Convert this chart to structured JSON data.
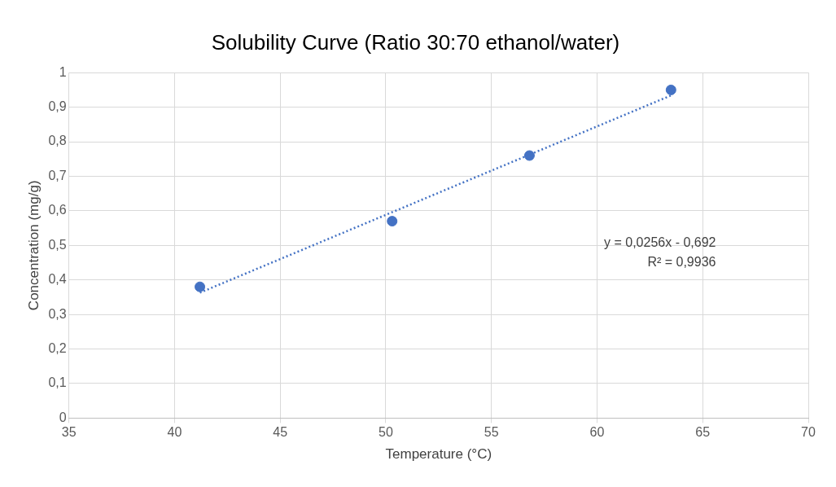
{
  "chart_data": {
    "type": "scatter",
    "title": "Solubility Curve (Ratio 30:70 ethanol/water)",
    "xlabel": "Temperature (°C)",
    "ylabel": "Concentration (mg/g)",
    "series": [
      {
        "type": "scatter",
        "color": "#4472c4",
        "marker": "circle",
        "x": [
          41.2,
          50.3,
          56.8,
          63.5
        ],
        "values": [
          0.38,
          0.57,
          0.76,
          0.95
        ]
      },
      {
        "type": "line",
        "color": "#4472c4",
        "marker": "none",
        "line_style": "dotted",
        "x": [
          41.2,
          63.5
        ],
        "values": [
          0.363,
          0.934
        ]
      }
    ],
    "xlim": [
      35,
      70
    ],
    "xticks": [
      35,
      40,
      45,
      50,
      55,
      60,
      65,
      70
    ],
    "ylim": [
      0,
      1
    ],
    "yticks": [
      0,
      {
        "value": 0.1,
        "label": "0,1"
      },
      {
        "value": 0.2,
        "label": "0,2"
      },
      {
        "value": 0.3,
        "label": "0,3"
      },
      {
        "value": 0.4,
        "label": "0,4"
      },
      {
        "value": 0.5,
        "label": "0,5"
      },
      {
        "value": 0.6,
        "label": "0,6"
      },
      {
        "value": 0.7,
        "label": "0,7"
      },
      {
        "value": 0.8,
        "label": "0,8"
      },
      {
        "value": 0.9,
        "label": "0,9"
      },
      1
    ],
    "grid": true,
    "legend": false,
    "annotations": [
      "y = 0,0256x - 0,692",
      "R² = 0,9936"
    ]
  }
}
